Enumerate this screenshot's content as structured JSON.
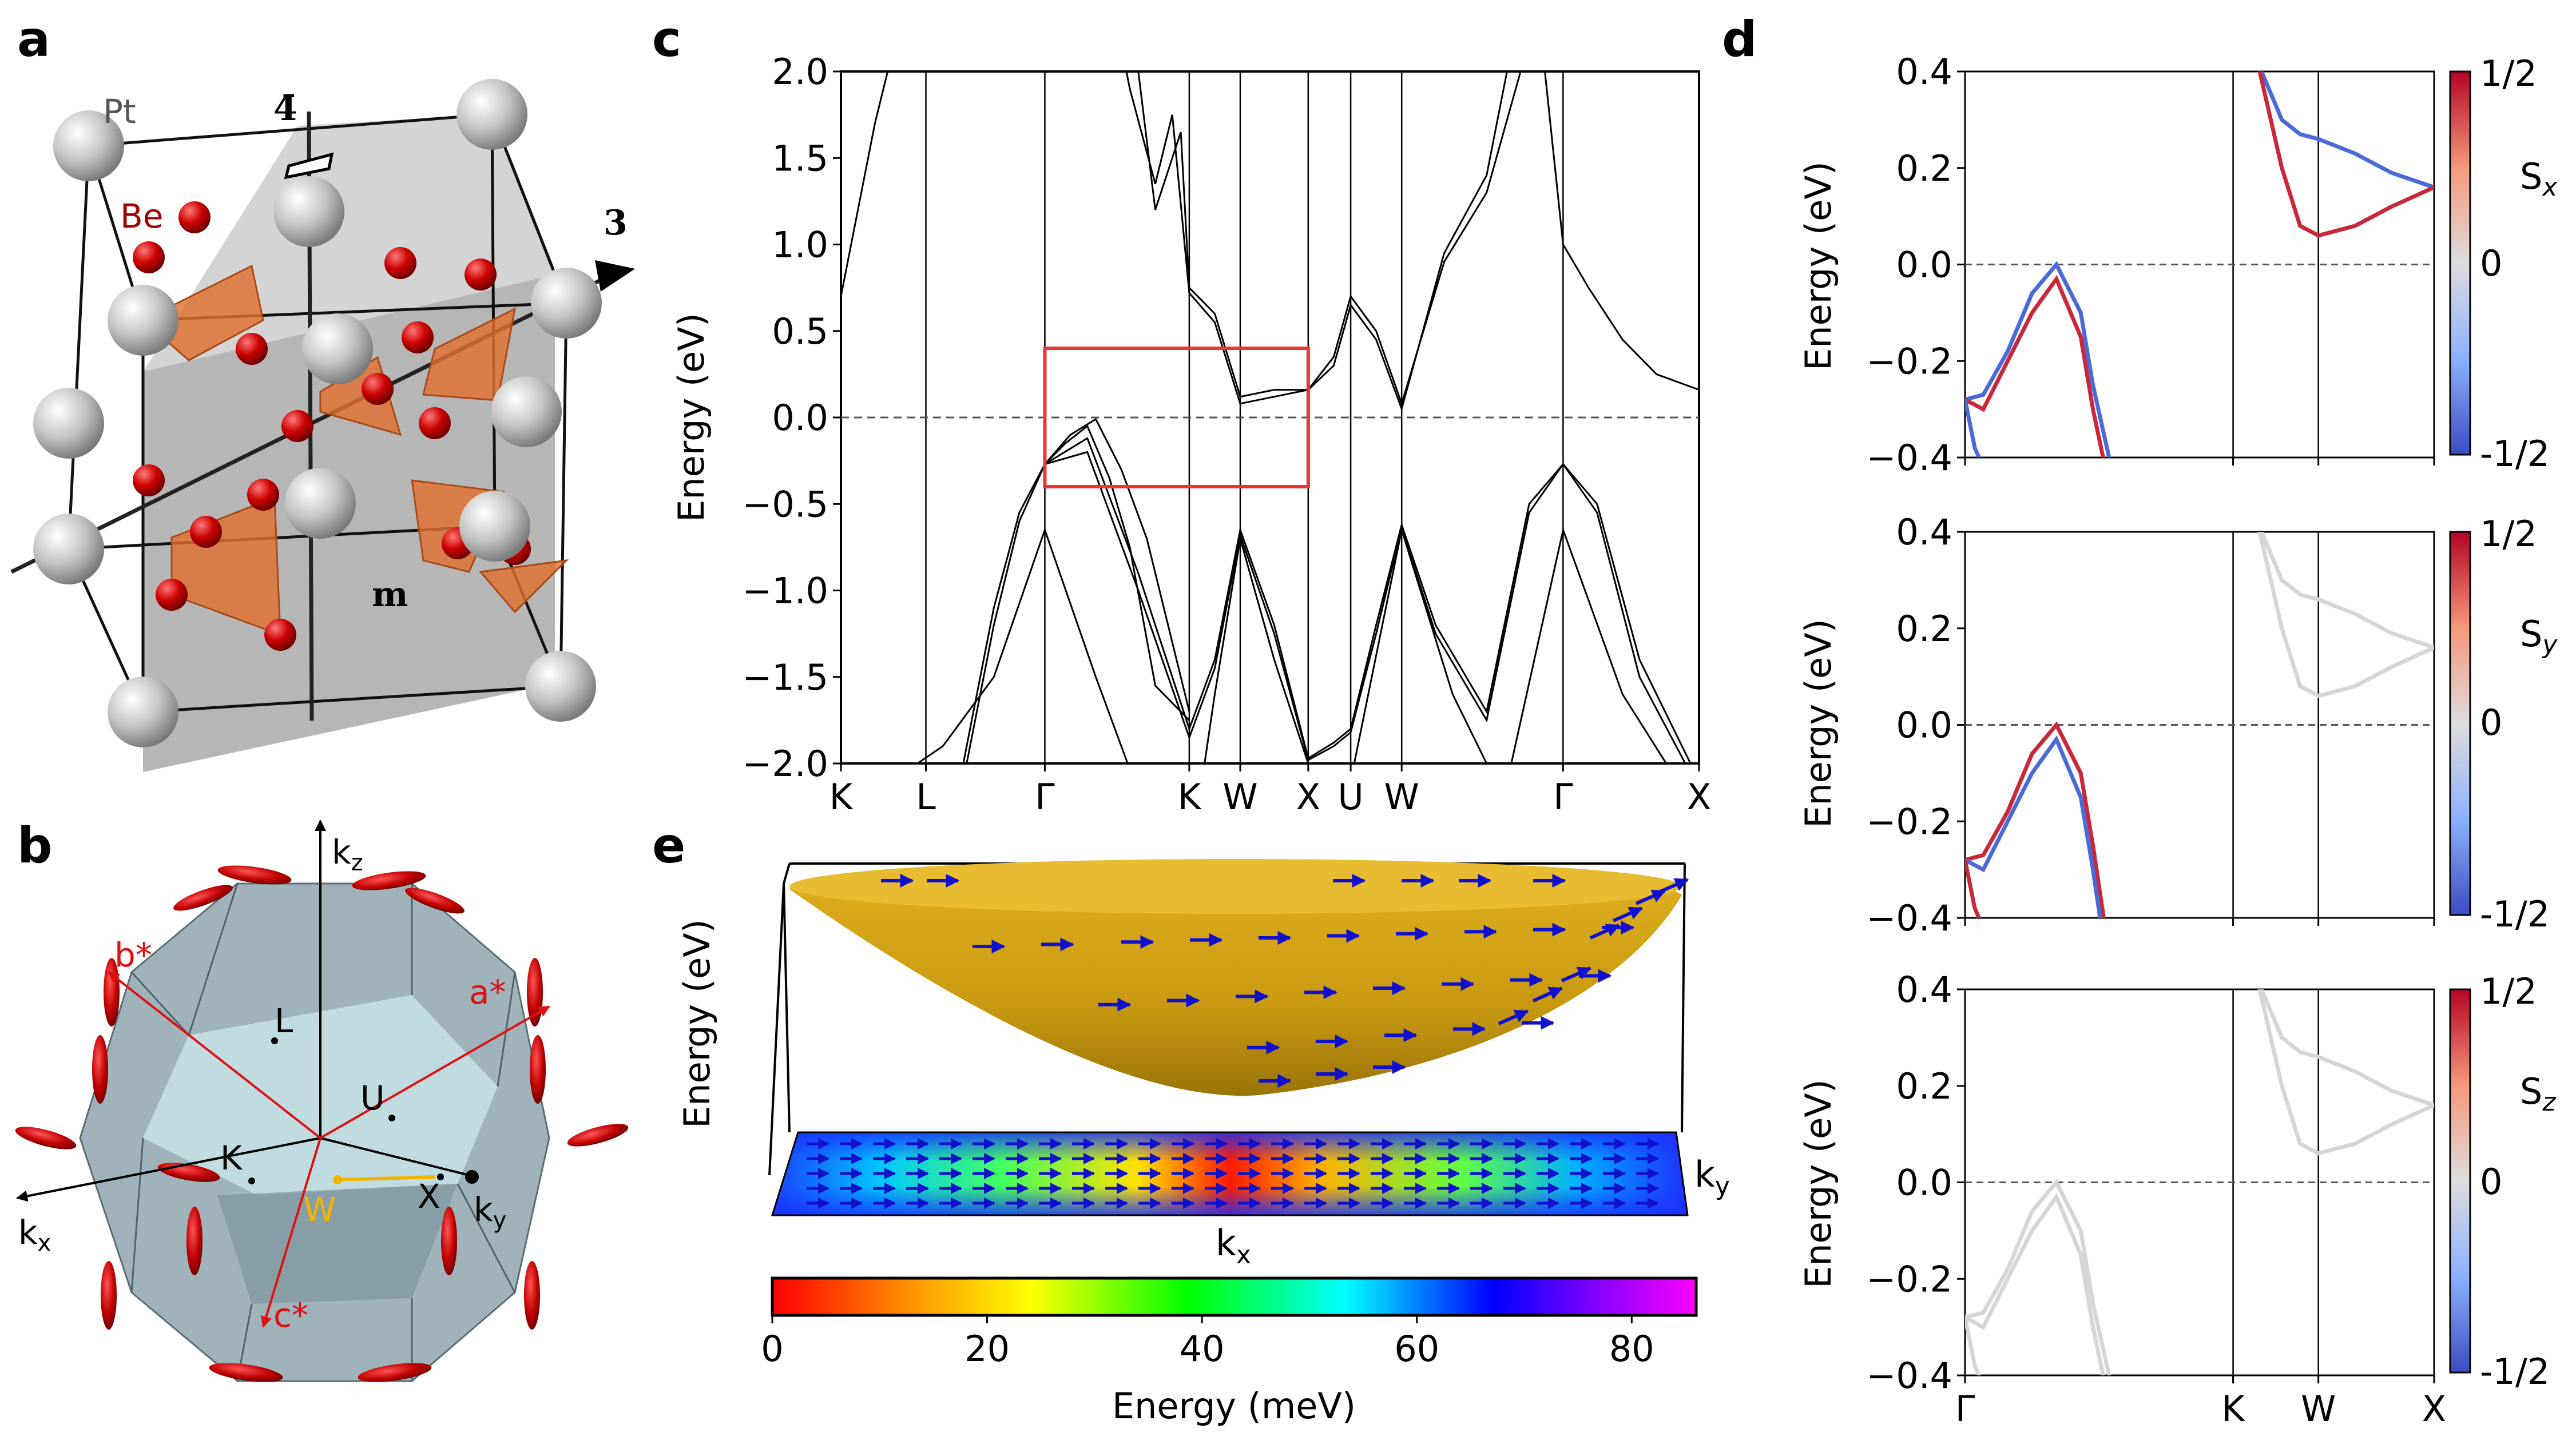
{
  "panel_labels": {
    "a": "a",
    "b": "b",
    "c": "c",
    "d": "d",
    "e": "e"
  },
  "panel_a": {
    "atom_pt": "Pt",
    "atom_be": "Be",
    "sym_rotoinversion": "4̄",
    "sym_threefold": "3",
    "sym_mirror": "m",
    "colors": {
      "pt": "#c8c8c8",
      "be": "#cc0000",
      "tetra": "#e07030",
      "plane": "#9e9e9e"
    }
  },
  "panel_b": {
    "axes": {
      "kz": "k",
      "kz_sub": "z",
      "kx": "k",
      "kx_sub": "x",
      "ky": "k",
      "ky_sub": "y"
    },
    "reciprocal": {
      "a": "a*",
      "b": "b*",
      "c": "c*"
    },
    "points": {
      "L": "L",
      "U": "U",
      "K": "K",
      "W": "W",
      "X": "X"
    },
    "colors": {
      "bz": "#8fa6ae",
      "bz_light": "#c7e3e6",
      "recip": "#dd1111",
      "path_w": "#f0b400"
    }
  },
  "chart_data": [
    {
      "id": "c",
      "type": "line",
      "title": "",
      "xlabel": "",
      "ylabel": "Energy (eV)",
      "ylim": [
        -2.0,
        2.0
      ],
      "yticks": [
        "2.0",
        "1.5",
        "1.0",
        "0.5",
        "0.0",
        "−0.5",
        "−1.0",
        "−1.5",
        "−2.0"
      ],
      "ytick_values": [
        2.0,
        1.5,
        1.0,
        0.5,
        0.0,
        -0.5,
        -1.0,
        -1.5,
        -2.0
      ],
      "kpoint_labels": [
        "K",
        "L",
        "Γ",
        "K",
        "W",
        "X",
        "U",
        "W",
        "Γ",
        "X"
      ],
      "kpoint_positions": [
        0.0,
        0.5,
        1.2,
        2.05,
        2.35,
        2.75,
        3.0,
        3.3,
        4.25,
        5.05
      ],
      "fermi_level": 0.0,
      "highlight_box": {
        "x_from": 1.2,
        "x_to": 2.75,
        "y_from": -0.4,
        "y_to": 0.4,
        "color": "#ee3333"
      },
      "series": [
        {
          "name": "band1",
          "x": [
            0,
            0.25,
            0.5,
            0.7,
            0.9,
            1.05,
            1.2,
            1.45,
            1.75,
            2.05,
            2.2,
            2.35,
            2.55,
            2.75,
            2.9,
            3.0,
            3.15,
            3.3,
            3.5,
            3.8,
            4.05,
            4.25,
            4.45,
            4.7,
            5.05
          ],
          "y": [
            -2.1,
            -2.5,
            -2.7,
            -2.2,
            -1.2,
            -0.6,
            -0.27,
            -0.12,
            -0.9,
            -1.8,
            -1.4,
            -0.65,
            -1.2,
            -1.97,
            -1.88,
            -1.8,
            -1.2,
            -0.62,
            -1.2,
            -1.7,
            -0.5,
            -0.27,
            -0.5,
            -1.4,
            -2.1
          ]
        },
        {
          "name": "band2",
          "x": [
            0,
            0.25,
            0.5,
            0.7,
            0.9,
            1.05,
            1.2,
            1.45,
            1.75,
            2.05,
            2.2,
            2.35,
            2.55,
            2.75,
            2.9,
            3.0,
            3.15,
            3.3,
            3.5,
            3.8,
            4.05,
            4.25,
            4.45,
            4.7,
            5.05
          ],
          "y": [
            -2.05,
            -2.4,
            -2.6,
            -2.1,
            -1.1,
            -0.55,
            -0.27,
            -0.2,
            -1.0,
            -1.85,
            -1.45,
            -0.68,
            -1.25,
            -1.98,
            -1.9,
            -1.82,
            -1.25,
            -0.64,
            -1.25,
            -1.75,
            -0.55,
            -0.27,
            -0.55,
            -1.5,
            -2.15
          ]
        },
        {
          "name": "band3",
          "x": [
            0,
            0.3,
            0.6,
            0.9,
            1.2,
            1.5,
            1.8,
            2.05,
            2.2,
            2.35,
            2.55,
            2.75,
            3.0,
            3.3,
            3.6,
            3.9,
            4.25,
            4.6,
            5.05
          ],
          "y": [
            -2.3,
            -2.1,
            -1.9,
            -1.5,
            -0.65,
            -1.5,
            -2.3,
            -2.6,
            -1.6,
            -0.7,
            -1.4,
            -2.0,
            -2.1,
            -0.65,
            -1.6,
            -2.2,
            -0.65,
            -1.6,
            -2.3
          ]
        },
        {
          "name": "band4",
          "x": [
            1.2,
            1.35,
            1.5,
            1.65,
            1.8,
            2.0,
            2.05
          ],
          "y": [
            -0.27,
            -0.1,
            -0.01,
            -0.3,
            -0.7,
            -1.5,
            -1.7
          ]
        },
        {
          "name": "band5",
          "x": [
            1.2,
            1.32,
            1.45,
            1.58,
            1.7,
            1.85,
            2.05
          ],
          "y": [
            -0.27,
            -0.15,
            -0.05,
            -0.35,
            -0.75,
            -1.55,
            -1.75
          ]
        },
        {
          "name": "cond1",
          "x": [
            0,
            0.1,
            0.2,
            0.3,
            0.35
          ],
          "y": [
            0.7,
            1.2,
            1.7,
            2.1,
            2.4
          ]
        },
        {
          "name": "cond2",
          "x": [
            1.6,
            1.7,
            1.85,
            1.95,
            2.05,
            2.2,
            2.35,
            2.55,
            2.75,
            2.9,
            3.0,
            3.15,
            3.3,
            3.55,
            3.8,
            4.0,
            4.1
          ],
          "y": [
            2.4,
            1.9,
            1.35,
            1.75,
            0.72,
            0.55,
            0.08,
            0.12,
            0.16,
            0.35,
            0.7,
            0.5,
            0.08,
            0.9,
            1.3,
            2.0,
            2.4
          ]
        },
        {
          "name": "cond3",
          "x": [
            1.7,
            1.85,
            2.0,
            2.05,
            2.2,
            2.35,
            2.55,
            2.75,
            2.9,
            3.0,
            3.15,
            3.3,
            3.55,
            3.8,
            4.0
          ],
          "y": [
            2.4,
            1.2,
            1.65,
            0.75,
            0.6,
            0.12,
            0.16,
            0.16,
            0.3,
            0.65,
            0.45,
            0.05,
            0.95,
            1.4,
            2.4
          ]
        },
        {
          "name": "cond4",
          "x": [
            4.1,
            4.25,
            4.4,
            4.6,
            4.8,
            5.05
          ],
          "y": [
            2.4,
            1.0,
            0.75,
            0.45,
            0.25,
            0.16
          ]
        }
      ]
    },
    {
      "id": "d1",
      "type": "line",
      "ylabel": "Energy (eV)",
      "ylim": [
        -0.4,
        0.4
      ],
      "yticks": [
        "0.4",
        "0.2",
        "0.0",
        "−0.2",
        "−0.4"
      ],
      "ytick_values": [
        0.4,
        0.2,
        0.0,
        -0.2,
        -0.4
      ],
      "kpoint_positions": [
        0.0,
        2.2,
        2.9,
        3.85
      ],
      "colorbar": {
        "label": "S",
        "sub": "x",
        "max": "1/2",
        "mid": "0",
        "min": "-1/2"
      },
      "series": [
        {
          "name": "upper-blue",
          "spin": "down",
          "x": [
            0,
            0.15,
            0.35,
            0.55,
            0.75,
            0.95,
            1.05,
            1.2
          ],
          "y": [
            -0.28,
            -0.27,
            -0.18,
            -0.06,
            0.0,
            -0.1,
            -0.25,
            -0.42
          ]
        },
        {
          "name": "upper-red",
          "spin": "up",
          "x": [
            0,
            0.15,
            0.35,
            0.55,
            0.75,
            0.95,
            1.05,
            1.15
          ],
          "y": [
            -0.28,
            -0.3,
            -0.2,
            -0.1,
            -0.03,
            -0.15,
            -0.3,
            -0.42
          ]
        },
        {
          "name": "lower-blue",
          "spin": "down",
          "x": [
            0,
            0.08,
            0.15
          ],
          "y": [
            -0.28,
            -0.38,
            -0.42
          ]
        },
        {
          "name": "cond-blue",
          "spin": "down",
          "x": [
            2.4,
            2.6,
            2.75,
            2.9,
            3.2,
            3.5,
            3.85
          ],
          "y": [
            0.42,
            0.3,
            0.27,
            0.26,
            0.23,
            0.19,
            0.16
          ]
        },
        {
          "name": "cond-red",
          "spin": "up",
          "x": [
            2.4,
            2.6,
            2.75,
            2.9,
            3.2,
            3.5,
            3.85
          ],
          "y": [
            0.42,
            0.2,
            0.08,
            0.06,
            0.08,
            0.12,
            0.16
          ]
        }
      ]
    },
    {
      "id": "d2",
      "type": "line",
      "ylabel": "Energy (eV)",
      "ylim": [
        -0.4,
        0.4
      ],
      "yticks": [
        "0.4",
        "0.2",
        "0.0",
        "−0.2",
        "−0.4"
      ],
      "ytick_values": [
        0.4,
        0.2,
        0.0,
        -0.2,
        -0.4
      ],
      "kpoint_positions": [
        0.0,
        2.2,
        2.9,
        3.85
      ],
      "colorbar": {
        "label": "S",
        "sub": "y",
        "max": "1/2",
        "mid": "0",
        "min": "-1/2"
      },
      "series": [
        {
          "name": "upper-red",
          "spin": "up",
          "x": [
            0,
            0.15,
            0.35,
            0.55,
            0.75,
            0.95,
            1.05,
            1.15
          ],
          "y": [
            -0.28,
            -0.27,
            -0.18,
            -0.06,
            0.0,
            -0.1,
            -0.25,
            -0.42
          ]
        },
        {
          "name": "upper-blue",
          "spin": "down",
          "x": [
            0,
            0.15,
            0.35,
            0.55,
            0.75,
            0.95,
            1.05,
            1.12
          ],
          "y": [
            -0.28,
            -0.3,
            -0.2,
            -0.1,
            -0.03,
            -0.15,
            -0.3,
            -0.42
          ]
        },
        {
          "name": "lower-red",
          "spin": "up",
          "x": [
            0,
            0.08,
            0.15
          ],
          "y": [
            -0.28,
            -0.38,
            -0.42
          ]
        },
        {
          "name": "cond-a",
          "spin": "none",
          "x": [
            2.4,
            2.6,
            2.75,
            2.9,
            3.2,
            3.5,
            3.85
          ],
          "y": [
            0.42,
            0.3,
            0.27,
            0.26,
            0.23,
            0.19,
            0.16
          ]
        },
        {
          "name": "cond-b",
          "spin": "none",
          "x": [
            2.4,
            2.6,
            2.75,
            2.9,
            3.2,
            3.5,
            3.85
          ],
          "y": [
            0.42,
            0.2,
            0.08,
            0.06,
            0.08,
            0.12,
            0.16
          ]
        }
      ]
    },
    {
      "id": "d3",
      "type": "line",
      "ylabel": "Energy (eV)",
      "ylim": [
        -0.4,
        0.4
      ],
      "yticks": [
        "0.4",
        "0.2",
        "0.0",
        "−0.2",
        "−0.4"
      ],
      "ytick_values": [
        0.4,
        0.2,
        0.0,
        -0.2,
        -0.4
      ],
      "kpoint_labels": [
        "Γ",
        "K",
        "W",
        "X"
      ],
      "kpoint_positions": [
        0.0,
        2.2,
        2.9,
        3.85
      ],
      "colorbar": {
        "label": "S",
        "sub": "z",
        "max": "1/2",
        "mid": "0",
        "min": "-1/2"
      },
      "series": [
        {
          "name": "upper-a",
          "spin": "none",
          "x": [
            0,
            0.15,
            0.35,
            0.55,
            0.75,
            0.95,
            1.05,
            1.2
          ],
          "y": [
            -0.28,
            -0.27,
            -0.18,
            -0.06,
            0.0,
            -0.1,
            -0.25,
            -0.42
          ]
        },
        {
          "name": "upper-b",
          "spin": "none",
          "x": [
            0,
            0.15,
            0.35,
            0.55,
            0.75,
            0.95,
            1.05,
            1.15
          ],
          "y": [
            -0.28,
            -0.3,
            -0.2,
            -0.1,
            -0.03,
            -0.15,
            -0.3,
            -0.42
          ]
        },
        {
          "name": "lower",
          "spin": "none",
          "x": [
            0,
            0.08,
            0.15
          ],
          "y": [
            -0.28,
            -0.38,
            -0.42
          ]
        },
        {
          "name": "cond-a",
          "spin": "none",
          "x": [
            2.4,
            2.6,
            2.75,
            2.9,
            3.2,
            3.5,
            3.85
          ],
          "y": [
            0.42,
            0.3,
            0.27,
            0.26,
            0.23,
            0.19,
            0.16
          ]
        },
        {
          "name": "cond-b",
          "spin": "none",
          "x": [
            2.4,
            2.6,
            2.75,
            2.9,
            3.2,
            3.5,
            3.85
          ],
          "y": [
            0.42,
            0.2,
            0.08,
            0.06,
            0.08,
            0.12,
            0.16
          ]
        }
      ]
    },
    {
      "id": "e",
      "type": "area",
      "ylabel": "Energy (eV)",
      "xlabel": "k",
      "xlabel_sub": "x",
      "ylabel_side": "k",
      "ylabel_side_sub": "y",
      "colorbar": {
        "label": "Energy (meV)",
        "ticks": [
          "0",
          "20",
          "40",
          "60",
          "80"
        ],
        "tick_values": [
          0,
          20,
          40,
          60,
          80
        ],
        "min": 0,
        "max": 86
      },
      "colors": {
        "surface": "#d4a010",
        "arrows": "#1111cc"
      }
    }
  ]
}
